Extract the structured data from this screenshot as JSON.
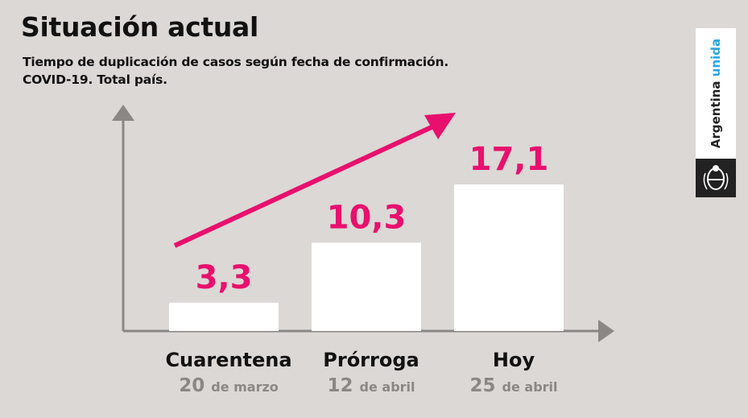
{
  "title": "Situación actual",
  "subtitle_line1": "Tiempo de duplicación de casos según fecha de confirmación.",
  "subtitle_line2": "COVID-19. Total país.",
  "logo": {
    "word1": "Argentina",
    "word2": "unida",
    "emblem_icon": "coat-of-arms-icon"
  },
  "colors": {
    "background": "#dcd8d5",
    "bar": "#ffffff",
    "axis": "#8a8785",
    "accent": "#e8106e",
    "logo_accent": "#29a8e0"
  },
  "chart_data": {
    "type": "bar",
    "categories": [
      "Cuarentena",
      "Prórroga",
      "Hoy"
    ],
    "dates": [
      {
        "day": "20",
        "month": "de marzo"
      },
      {
        "day": "12",
        "month": "de abril"
      },
      {
        "day": "25",
        "month": "de abril"
      }
    ],
    "values": [
      3.3,
      10.3,
      17.1
    ],
    "value_labels": [
      "3,3",
      "10,3",
      "17,1"
    ],
    "trend_arrow": "increasing",
    "grid": false
  }
}
